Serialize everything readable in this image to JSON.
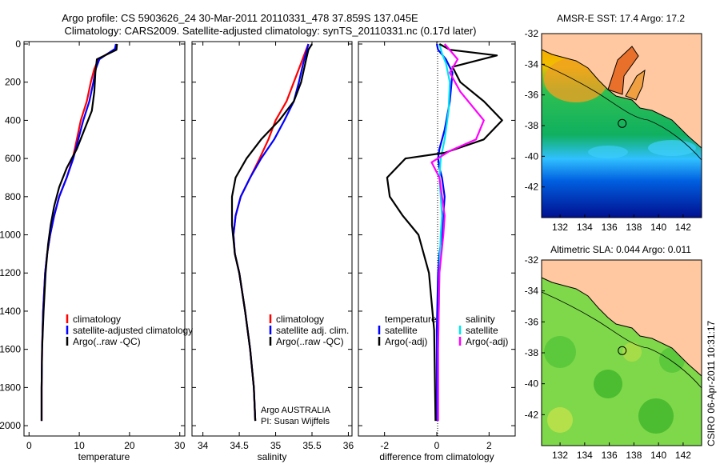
{
  "header": {
    "line1": "Argo profile: CS 5903626_24 30-Mar-2011 20110331_478 37.859S 137.045E",
    "line2": "Climatology: CARS2009. Satellite-adjusted climatology: synTS_20110331.nc (0.17d later)"
  },
  "side_stamp": "CSIRO 06-Apr-2011 10:31:17",
  "chart_data": [
    {
      "type": "line",
      "panel": "temperature",
      "xlabel": "temperature",
      "ylabel": "",
      "xlim": [
        -1,
        31
      ],
      "ylim": [
        2050,
        0
      ],
      "xticks": [
        0,
        10,
        20,
        30
      ],
      "yticks": [
        0,
        200,
        400,
        600,
        800,
        1000,
        1200,
        1400,
        1600,
        1800,
        2000
      ],
      "legend": [
        "climatology",
        "satellite-adjusted climatology",
        "Argo(..raw -QC)"
      ],
      "series": [
        {
          "name": "climatology",
          "color": "#ff0000",
          "x": [
            17.5,
            17.3,
            13.8,
            13.0,
            12.3,
            11.5,
            10.3,
            9.5,
            8.7,
            7.5,
            6.0,
            5.0,
            4.2,
            3.6,
            3.2,
            2.8,
            2.6,
            2.5,
            2.5
          ],
          "y": [
            0,
            25,
            80,
            130,
            200,
            300,
            400,
            500,
            600,
            700,
            800,
            900,
            1000,
            1100,
            1200,
            1400,
            1600,
            1800,
            1975
          ]
        },
        {
          "name": "satellite-adjusted climatology",
          "color": "#0000ff",
          "x": [
            17.3,
            17.1,
            14.0,
            13.3,
            12.8,
            12.0,
            10.8,
            9.8,
            8.8,
            7.5,
            6.0,
            5.0,
            4.2,
            3.6,
            3.2,
            2.8,
            2.6,
            2.5,
            2.5
          ],
          "y": [
            0,
            25,
            80,
            130,
            200,
            300,
            400,
            500,
            600,
            700,
            800,
            900,
            1000,
            1100,
            1200,
            1400,
            1600,
            1800,
            1975
          ]
        },
        {
          "name": "Argo(..raw -QC)",
          "color": "#000000",
          "x": [
            17.5,
            17.4,
            13.5,
            13.2,
            13.0,
            12.5,
            11.0,
            9.5,
            7.5,
            6.0,
            5.0,
            4.3,
            3.8,
            3.3,
            2.9,
            2.6,
            2.5,
            2.5
          ],
          "y": [
            0,
            30,
            80,
            150,
            250,
            350,
            450,
            550,
            650,
            750,
            850,
            950,
            1050,
            1200,
            1400,
            1600,
            1800,
            1975
          ]
        }
      ]
    },
    {
      "type": "line",
      "panel": "salinity",
      "xlabel": "salinity",
      "xlim": [
        33.85,
        36.05
      ],
      "ylim": [
        2050,
        0
      ],
      "xticks": [
        34,
        34.5,
        35,
        35.5,
        36
      ],
      "xtick_labels": [
        "34",
        "34.5",
        "35",
        "35.5",
        "36"
      ],
      "legend": [
        "climatology",
        "satellite adj. clim.",
        "Argo(..raw -QC)"
      ],
      "annotation": [
        "Argo AUSTRALIA",
        "PI: Susan Wijffels"
      ],
      "series": [
        {
          "name": "climatology",
          "color": "#ff0000",
          "x": [
            35.45,
            35.42,
            35.35,
            35.25,
            35.15,
            35.0,
            34.9,
            34.78,
            34.65,
            34.52,
            34.45,
            34.42,
            34.44,
            34.5,
            34.58,
            34.65,
            34.7,
            34.72
          ],
          "y": [
            0,
            30,
            100,
            200,
            300,
            400,
            500,
            600,
            700,
            800,
            900,
            1000,
            1100,
            1200,
            1400,
            1600,
            1800,
            1975
          ]
        },
        {
          "name": "satellite adj. clim.",
          "color": "#0000ff",
          "x": [
            35.45,
            35.43,
            35.38,
            35.32,
            35.25,
            35.12,
            34.98,
            34.8,
            34.65,
            34.52,
            34.45,
            34.42,
            34.44,
            34.5,
            34.58,
            34.65,
            34.7,
            34.72
          ],
          "y": [
            0,
            30,
            100,
            200,
            300,
            400,
            500,
            600,
            700,
            800,
            900,
            1000,
            1100,
            1200,
            1400,
            1600,
            1800,
            1975
          ]
        },
        {
          "name": "Argo(..raw -QC)",
          "color": "#000000",
          "x": [
            35.5,
            35.45,
            35.42,
            35.35,
            35.25,
            35.05,
            34.8,
            34.6,
            34.45,
            34.4,
            34.4,
            34.44,
            34.5,
            34.58,
            34.65,
            34.7,
            34.72
          ],
          "y": [
            0,
            30,
            80,
            200,
            300,
            400,
            500,
            600,
            700,
            800,
            950,
            1100,
            1200,
            1400,
            1600,
            1800,
            1975
          ]
        }
      ]
    },
    {
      "type": "line",
      "panel": "difference",
      "xlabel": "difference from climatology",
      "xlim": [
        -3.0,
        3.0
      ],
      "ylim": [
        2050,
        0
      ],
      "xticks": [
        -2,
        0,
        2
      ],
      "legend_left": [
        "temperature",
        "satellite",
        "Argo(-adj)"
      ],
      "legend_right": [
        "salinity",
        "satellite",
        "Argo(-adj)"
      ],
      "series": [
        {
          "name": "temperature satellite",
          "color": "#0000ff",
          "x": [
            0.0,
            0.05,
            0.35,
            0.6,
            0.5,
            0.3,
            0.1,
            0.05,
            0.1,
            0.2,
            0.3,
            0.2,
            0.1,
            0.05,
            0.0,
            0.0,
            0.0
          ],
          "y": [
            0,
            30,
            80,
            150,
            300,
            450,
            550,
            600,
            650,
            700,
            800,
            1000,
            1100,
            1200,
            1500,
            1800,
            1975
          ]
        },
        {
          "name": "salinity satellite",
          "color": "#00e5ee",
          "x": [
            0.1,
            0.2,
            0.35,
            0.5,
            0.45,
            0.3,
            0.15,
            0.1,
            0.15,
            0.2,
            0.15,
            0.1,
            0.05,
            0.05
          ],
          "y": [
            0,
            50,
            100,
            200,
            350,
            500,
            600,
            700,
            800,
            900,
            1000,
            1200,
            1600,
            1975
          ]
        },
        {
          "name": "temperature Argo(-adj)",
          "color": "#000000",
          "x": [
            0.1,
            0.5,
            2.3,
            0.6,
            0.9,
            1.8,
            2.5,
            1.8,
            0.3,
            -1.2,
            -1.9,
            -1.8,
            -1.3,
            -0.7,
            -0.3,
            -0.1,
            -0.05
          ],
          "y": [
            0,
            30,
            60,
            120,
            200,
            300,
            400,
            500,
            570,
            600,
            700,
            800,
            900,
            1000,
            1200,
            1500,
            1975
          ]
        },
        {
          "name": "salinity Argo(-adj)",
          "color": "#ff00ff",
          "x": [
            0.3,
            0.8,
            0.5,
            0.9,
            1.8,
            1.5,
            0.5,
            -0.2,
            0.1,
            0.2,
            0.3,
            0.25,
            0.1,
            0.05,
            0.05
          ],
          "y": [
            0,
            80,
            150,
            250,
            400,
            500,
            560,
            620,
            700,
            800,
            900,
            1000,
            1200,
            1600,
            1975
          ]
        }
      ]
    },
    {
      "type": "heatmap",
      "panel": "sst-map",
      "title": "AMSR-E SST: 17.4 Argo: 17.2",
      "xlim": [
        130.5,
        143.5
      ],
      "ylim": [
        -44,
        -32
      ],
      "xticks": [
        132,
        134,
        136,
        138,
        140,
        142
      ],
      "yticks": [
        -32,
        -34,
        -36,
        -38,
        -40,
        -42
      ],
      "marker": {
        "lon": 137.045,
        "lat": -37.859
      }
    },
    {
      "type": "heatmap",
      "panel": "sla-map",
      "title": "Altimetric SLA: 0.044 Argo: 0.011",
      "xlim": [
        130.5,
        143.5
      ],
      "ylim": [
        -44,
        -32
      ],
      "xticks": [
        132,
        134,
        136,
        138,
        140,
        142
      ],
      "yticks": [
        -32,
        -34,
        -36,
        -38,
        -40,
        -42
      ],
      "marker": {
        "lon": 137.045,
        "lat": -37.859
      }
    }
  ]
}
